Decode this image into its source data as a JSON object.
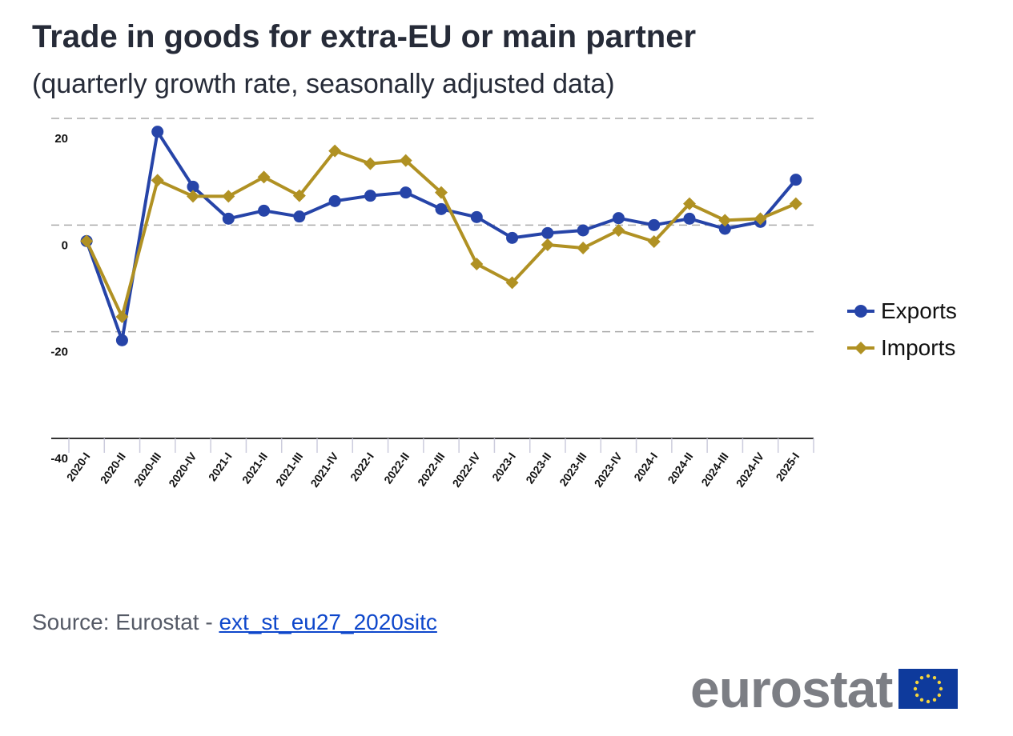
{
  "title": "Trade in goods for extra-EU or main partner",
  "subtitle": "(quarterly growth rate, seasonally adjusted data)",
  "source": {
    "prefix": "Source: Eurostat - ",
    "link": "ext_st_eu27_2020sitc"
  },
  "logo": {
    "text": "eurostat",
    "flag": "eu-flag-icon"
  },
  "colors": {
    "exports": "#2644a8",
    "imports": "#b09123"
  },
  "chart_data": {
    "type": "line",
    "title": "Trade in goods for extra-EU or main partner",
    "subtitle": "(quarterly growth rate, seasonally adjusted data)",
    "xlabel": "",
    "ylabel": "",
    "ylim": [
      -40,
      20
    ],
    "yticks": [
      20,
      0,
      -20,
      -40
    ],
    "grid": true,
    "legend_position": "right",
    "categories": [
      "2020-I",
      "2020-II",
      "2020-III",
      "2020-IV",
      "2021-I",
      "2021-II",
      "2021-III",
      "2021-IV",
      "2022-I",
      "2022-II",
      "2022-III",
      "2022-IV",
      "2023-I",
      "2023-II",
      "2023-III",
      "2023-IV",
      "2024-I",
      "2024-II",
      "2024-III",
      "2024-IV",
      "2025-I"
    ],
    "series": [
      {
        "name": "Exports",
        "marker": "circle",
        "values": [
          -3.0,
          -21.6,
          17.5,
          7.2,
          1.2,
          2.7,
          1.6,
          4.5,
          5.5,
          6.1,
          3.0,
          1.5,
          -2.4,
          -1.5,
          -1.0,
          1.3,
          0.0,
          1.2,
          -0.7,
          0.6,
          8.5
        ]
      },
      {
        "name": "Imports",
        "marker": "diamond",
        "values": [
          -3.0,
          -17.2,
          8.4,
          5.4,
          5.4,
          9.0,
          5.5,
          13.9,
          11.5,
          12.1,
          6.1,
          -7.3,
          -10.8,
          -3.7,
          -4.3,
          -1.0,
          -3.1,
          4.0,
          0.9,
          1.2,
          4.0
        ]
      }
    ]
  }
}
